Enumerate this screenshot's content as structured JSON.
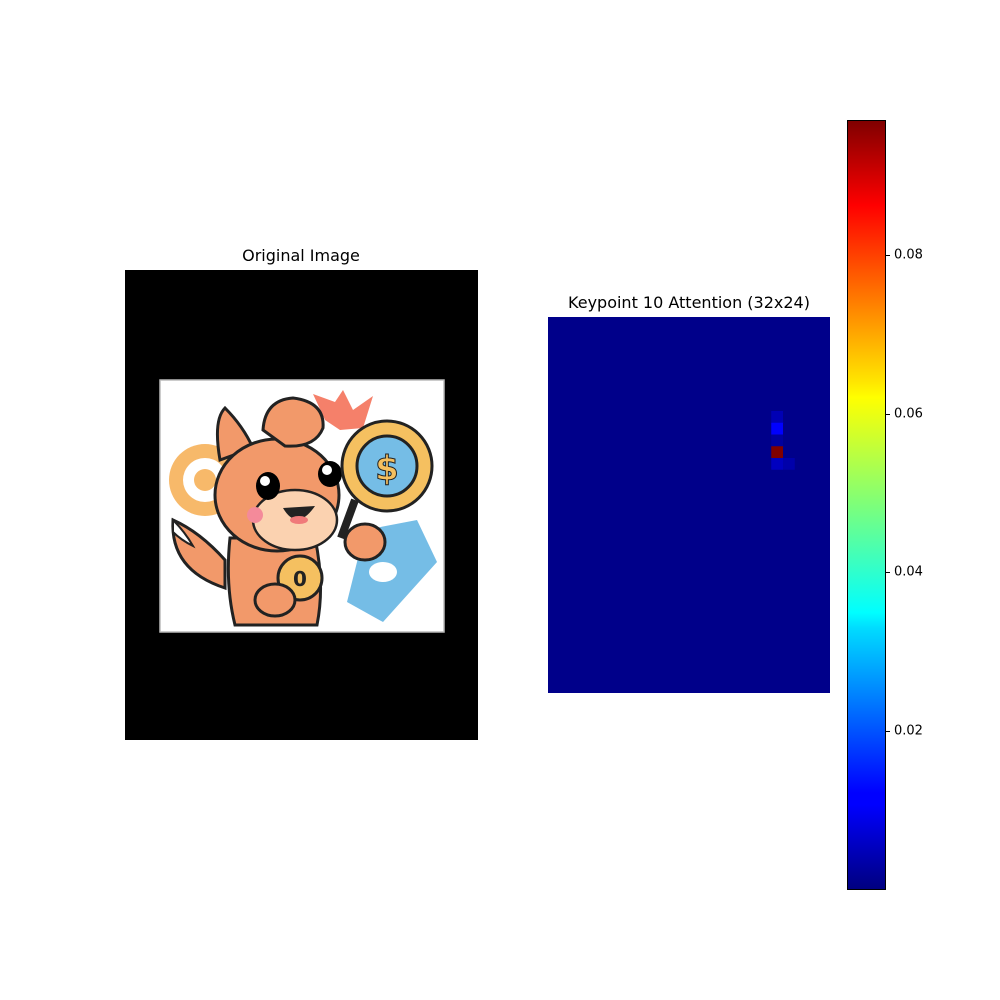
{
  "panels": {
    "original_title": "Original Image",
    "heatmap_title": "Keypoint 10 Attention (32x24)"
  },
  "chart_data": {
    "type": "heatmap",
    "title": "Keypoint 10 Attention (32x24)",
    "rows": 32,
    "cols": 24,
    "background_value": 0.001,
    "hotspots": [
      {
        "row": 8,
        "col": 19,
        "value": 0.005
      },
      {
        "row": 9,
        "col": 19,
        "value": 0.012
      },
      {
        "row": 10,
        "col": 19,
        "value": 0.003
      },
      {
        "row": 11,
        "col": 19,
        "value": 0.097
      },
      {
        "row": 12,
        "col": 19,
        "value": 0.006
      },
      {
        "row": 12,
        "col": 20,
        "value": 0.004
      }
    ],
    "colormap": "jet",
    "colorbar": {
      "vmin": 0.0,
      "vmax": 0.097,
      "ticks": [
        "0.02",
        "0.04",
        "0.06",
        "0.08"
      ],
      "tick_values": [
        0.02,
        0.04,
        0.06,
        0.08
      ]
    }
  },
  "illustration": {
    "subject": "cartoon-fox-holding-coin-and-magnifier",
    "coin_symbol": "$",
    "coin_letter": "0"
  }
}
